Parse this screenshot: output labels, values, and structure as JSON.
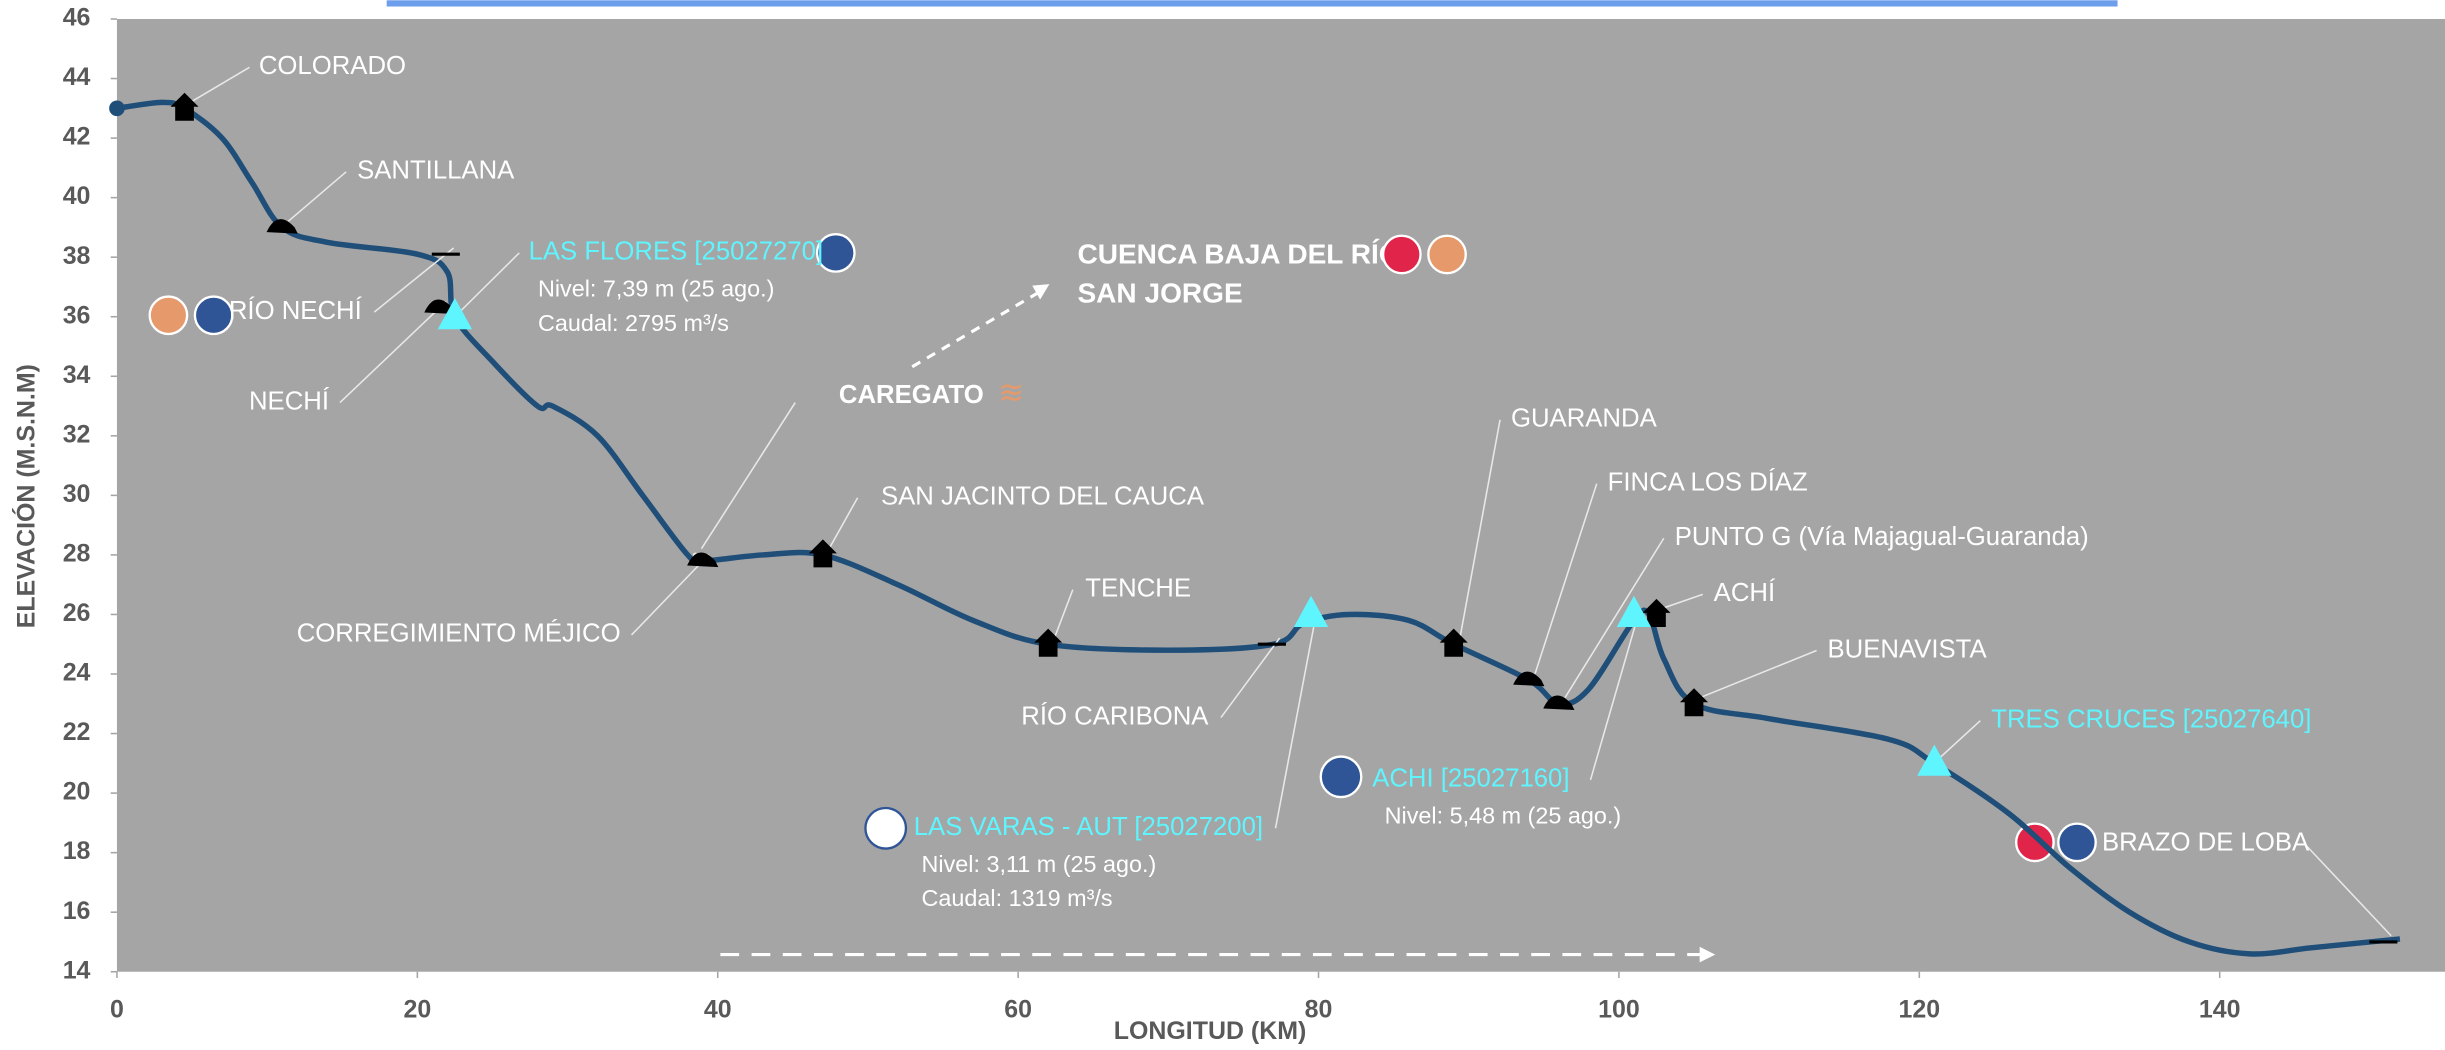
{
  "chart_data": {
    "type": "line",
    "x_label": "LONGITUD (KM)",
    "y_label": "ELEVACIÓN (M.S.N.M)",
    "xlim": [
      0,
      155
    ],
    "ylim": [
      14,
      46
    ],
    "xticks": [
      0,
      20,
      40,
      60,
      80,
      100,
      120,
      140
    ],
    "yticks": [
      14,
      16,
      18,
      20,
      22,
      24,
      26,
      28,
      30,
      32,
      34,
      36,
      38,
      40,
      42,
      44,
      46
    ],
    "series": [
      {
        "color": "#1f4e79",
        "x": [
          0,
          3,
          4.5,
          7,
          9,
          11,
          14,
          20,
          22,
          22.5,
          25,
          28,
          29,
          32,
          35,
          38,
          39,
          43,
          47,
          52,
          57,
          62,
          70,
          77,
          79,
          82,
          86,
          89,
          94,
          96,
          98,
          101,
          102,
          103,
          105,
          110,
          118,
          121,
          126,
          130,
          134,
          138,
          142,
          146,
          150,
          152
        ],
        "values": [
          43,
          43.2,
          43,
          42,
          40.5,
          39,
          38.5,
          38.1,
          37.5,
          36,
          34.5,
          33,
          33,
          32,
          30,
          28,
          27.8,
          28,
          28,
          27,
          25.8,
          25,
          24.8,
          25,
          25.7,
          26,
          25.8,
          25,
          23.8,
          23,
          23.5,
          25.8,
          26,
          24.5,
          23,
          22.5,
          21.8,
          21,
          19.3,
          17.5,
          16,
          15,
          14.6,
          14.8,
          15,
          15.1
        ]
      }
    ],
    "region_label": [
      "CUENCA BAJA DEL RÍO",
      "SAN JORGE"
    ],
    "annotations": [
      {
        "text": "COLORADO",
        "x": 4.5,
        "y": 43
      },
      {
        "text": "SANTILLANA",
        "x": 11,
        "y": 39
      },
      {
        "text": "RÍO NECHÍ",
        "x": 22,
        "y": 38.1
      },
      {
        "text": "NECHÍ",
        "x": 21.5,
        "y": 36.3
      },
      {
        "text": "LAS FLORES [25027270]",
        "x": 22.5,
        "y": 36,
        "color": "#5ff5ff",
        "details": [
          "Nivel: 7,39  m (25 ago.)",
          "Caudal: 2795 m³/s"
        ]
      },
      {
        "text": "CAREGATO",
        "x": 38.5,
        "y": 28
      },
      {
        "text": "CORREGIMIENTO MÉJICO",
        "x": 39,
        "y": 27.8
      },
      {
        "text": "SAN JACINTO DEL CAUCA",
        "x": 47,
        "y": 28
      },
      {
        "text": "TENCHE",
        "x": 62,
        "y": 25
      },
      {
        "text": "RÍO CARIBONA",
        "x": 77,
        "y": 25
      },
      {
        "text": "LAS VARAS - AUT [25027200]",
        "x": 79.5,
        "y": 26,
        "color": "#5ff5ff",
        "details": [
          "Nivel: 3,11  m (25 ago.)",
          "Caudal: 1319 m³/s"
        ]
      },
      {
        "text": "GUARANDA",
        "x": 89,
        "y": 25
      },
      {
        "text": "FINCA LOS DÍAZ",
        "x": 94,
        "y": 23.8
      },
      {
        "text": "PUNTO G (Vía Majagual-Guaranda)",
        "x": 96,
        "y": 23
      },
      {
        "text": "ACHÍ",
        "x": 102.5,
        "y": 26
      },
      {
        "text": "BUENAVISTA",
        "x": 105,
        "y": 23
      },
      {
        "text": "ACHI [25027160]",
        "x": 101,
        "y": 26,
        "color": "#5ff5ff",
        "details": [
          "Nivel: 5,48 m (25 ago.)"
        ]
      },
      {
        "text": "TRES CRUCES [25027640]",
        "x": 121,
        "y": 21,
        "color": "#5ff5ff"
      },
      {
        "text": "BRAZO DE LOBA",
        "x": 151,
        "y": 15
      }
    ]
  }
}
